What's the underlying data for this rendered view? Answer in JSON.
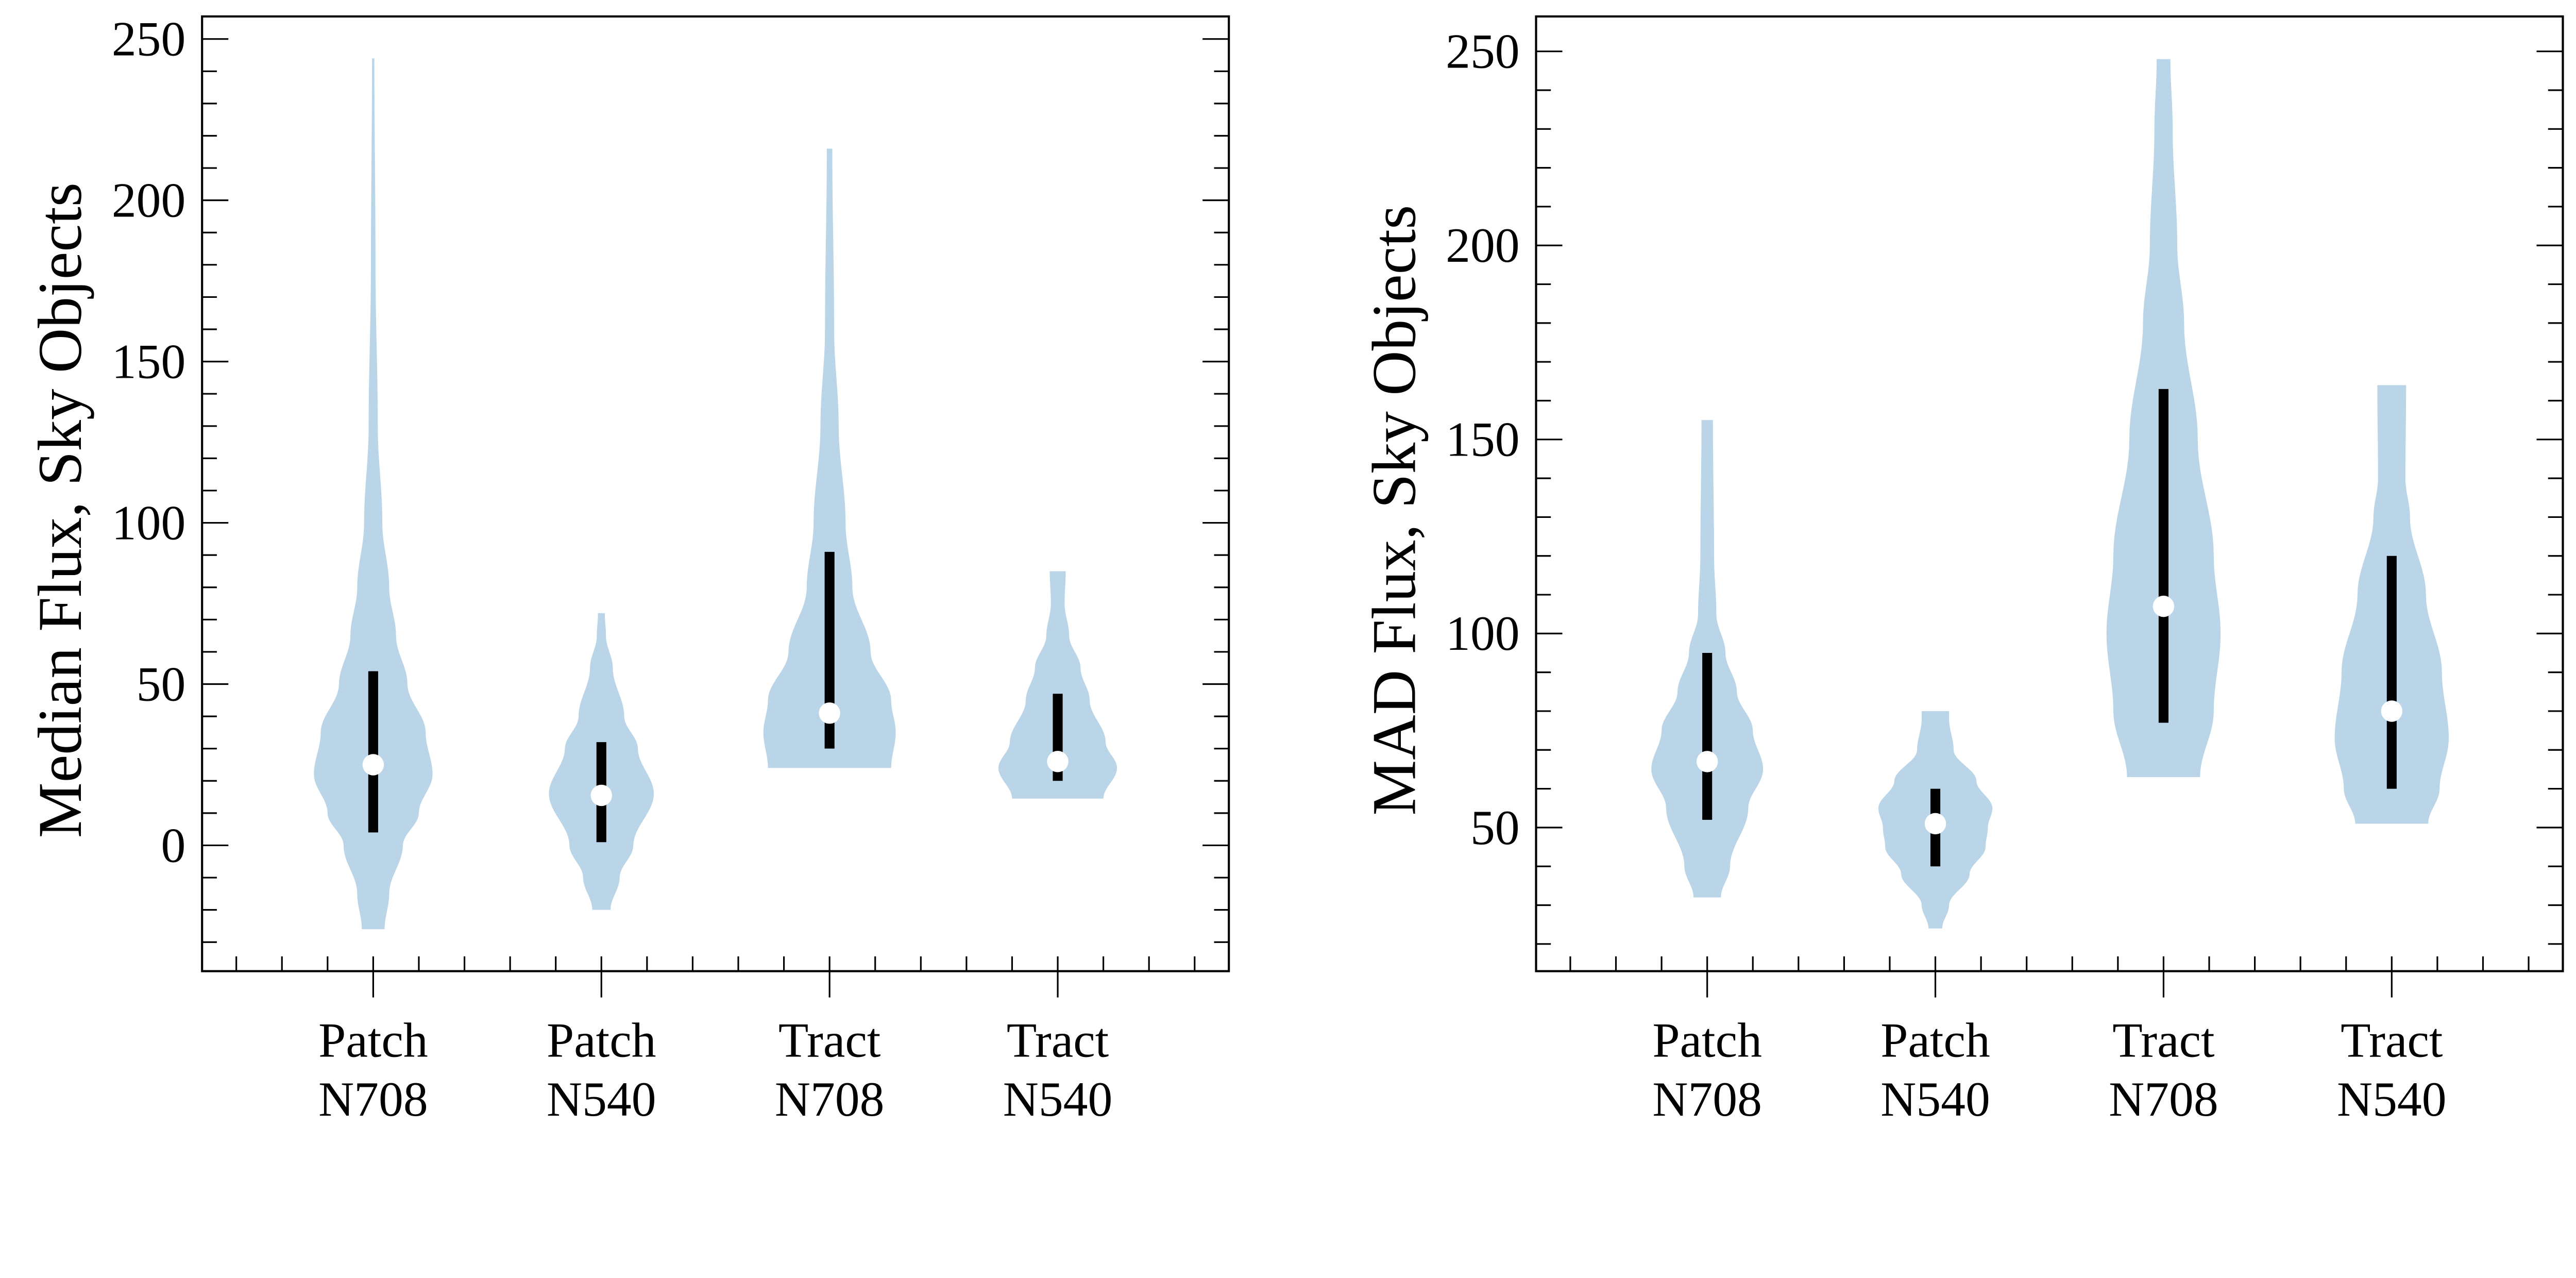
{
  "chart_data": [
    {
      "type": "violin",
      "ylabel": "Median Flux, Sky Objects",
      "categories": [
        [
          "Patch",
          "N708"
        ],
        [
          "Patch",
          "N540"
        ],
        [
          "Tract",
          "N708"
        ],
        [
          "Tract",
          "N540"
        ]
      ],
      "ylim": [
        -39,
        257
      ],
      "xlim": [
        0.25,
        4.75
      ],
      "yticks": [
        0,
        50,
        100,
        150,
        200,
        250
      ],
      "yminor_step": 10,
      "grid": false,
      "violin_color": "#bad5e8",
      "violins": [
        {
          "min": -26,
          "max": 244,
          "median": 25,
          "bar_low": 4,
          "bar_high": 54,
          "profile": [
            [
              -26,
              0.05
            ],
            [
              -15,
              0.07
            ],
            [
              0,
              0.13
            ],
            [
              10,
              0.2
            ],
            [
              22,
              0.26
            ],
            [
              35,
              0.23
            ],
            [
              50,
              0.15
            ],
            [
              65,
              0.1
            ],
            [
              80,
              0.07
            ],
            [
              100,
              0.04
            ],
            [
              130,
              0.02
            ],
            [
              180,
              0.01
            ],
            [
              244,
              0.005
            ]
          ]
        },
        {
          "min": -20,
          "max": 72,
          "median": 15.5,
          "bar_low": 1,
          "bar_high": 32,
          "profile": [
            [
              -20,
              0.04
            ],
            [
              -10,
              0.08
            ],
            [
              0,
              0.14
            ],
            [
              16,
              0.23
            ],
            [
              30,
              0.16
            ],
            [
              40,
              0.1
            ],
            [
              55,
              0.05
            ],
            [
              65,
              0.02
            ],
            [
              72,
              0.015
            ]
          ]
        },
        {
          "min": 24,
          "max": 216,
          "median": 41,
          "bar_low": 30,
          "bar_high": 91,
          "profile": [
            [
              24,
              0.27
            ],
            [
              35,
              0.29
            ],
            [
              45,
              0.27
            ],
            [
              60,
              0.18
            ],
            [
              80,
              0.1
            ],
            [
              100,
              0.07
            ],
            [
              130,
              0.04
            ],
            [
              160,
              0.02
            ],
            [
              216,
              0.012
            ]
          ]
        },
        {
          "min": 14.5,
          "max": 85,
          "median": 26,
          "bar_low": 20,
          "bar_high": 47,
          "profile": [
            [
              14.5,
              0.2
            ],
            [
              24,
              0.26
            ],
            [
              32,
              0.21
            ],
            [
              45,
              0.14
            ],
            [
              55,
              0.1
            ],
            [
              65,
              0.05
            ],
            [
              75,
              0.03
            ],
            [
              85,
              0.035
            ]
          ]
        }
      ]
    },
    {
      "type": "violin",
      "ylabel": "MAD Flux, Sky Objects",
      "categories": [
        [
          "Patch",
          "N708"
        ],
        [
          "Patch",
          "N540"
        ],
        [
          "Tract",
          "N708"
        ],
        [
          "Tract",
          "N540"
        ]
      ],
      "ylim": [
        13,
        259
      ],
      "xlim": [
        0.25,
        4.75
      ],
      "yticks": [
        50,
        100,
        150,
        200,
        250
      ],
      "yminor_step": 10,
      "grid": false,
      "violin_color": "#bad5e8",
      "violins": [
        {
          "min": 32,
          "max": 155,
          "median": 67,
          "bar_low": 52,
          "bar_high": 95,
          "profile": [
            [
              32,
              0.06
            ],
            [
              40,
              0.1
            ],
            [
              55,
              0.18
            ],
            [
              65,
              0.245
            ],
            [
              75,
              0.2
            ],
            [
              85,
              0.13
            ],
            [
              95,
              0.08
            ],
            [
              105,
              0.04
            ],
            [
              120,
              0.03
            ],
            [
              155,
              0.025
            ]
          ]
        },
        {
          "min": 24,
          "max": 80,
          "median": 51,
          "bar_low": 40,
          "bar_high": 60,
          "profile": [
            [
              24,
              0.03
            ],
            [
              30,
              0.06
            ],
            [
              38,
              0.15
            ],
            [
              45,
              0.22
            ],
            [
              50,
              0.23
            ],
            [
              55,
              0.25
            ],
            [
              62,
              0.18
            ],
            [
              70,
              0.08
            ],
            [
              78,
              0.06
            ],
            [
              80,
              0.06
            ]
          ]
        },
        {
          "min": 63,
          "max": 248,
          "median": 107,
          "bar_low": 77,
          "bar_high": 163,
          "profile": [
            [
              63,
              0.16
            ],
            [
              80,
              0.22
            ],
            [
              100,
              0.25
            ],
            [
              120,
              0.22
            ],
            [
              150,
              0.15
            ],
            [
              180,
              0.09
            ],
            [
              200,
              0.06
            ],
            [
              230,
              0.04
            ],
            [
              248,
              0.03
            ]
          ]
        },
        {
          "min": 51,
          "max": 164,
          "median": 80,
          "bar_low": 60,
          "bar_high": 120,
          "profile": [
            [
              51,
              0.16
            ],
            [
              60,
              0.21
            ],
            [
              73,
              0.25
            ],
            [
              90,
              0.22
            ],
            [
              110,
              0.15
            ],
            [
              130,
              0.08
            ],
            [
              140,
              0.06
            ],
            [
              164,
              0.063
            ]
          ]
        }
      ]
    }
  ]
}
